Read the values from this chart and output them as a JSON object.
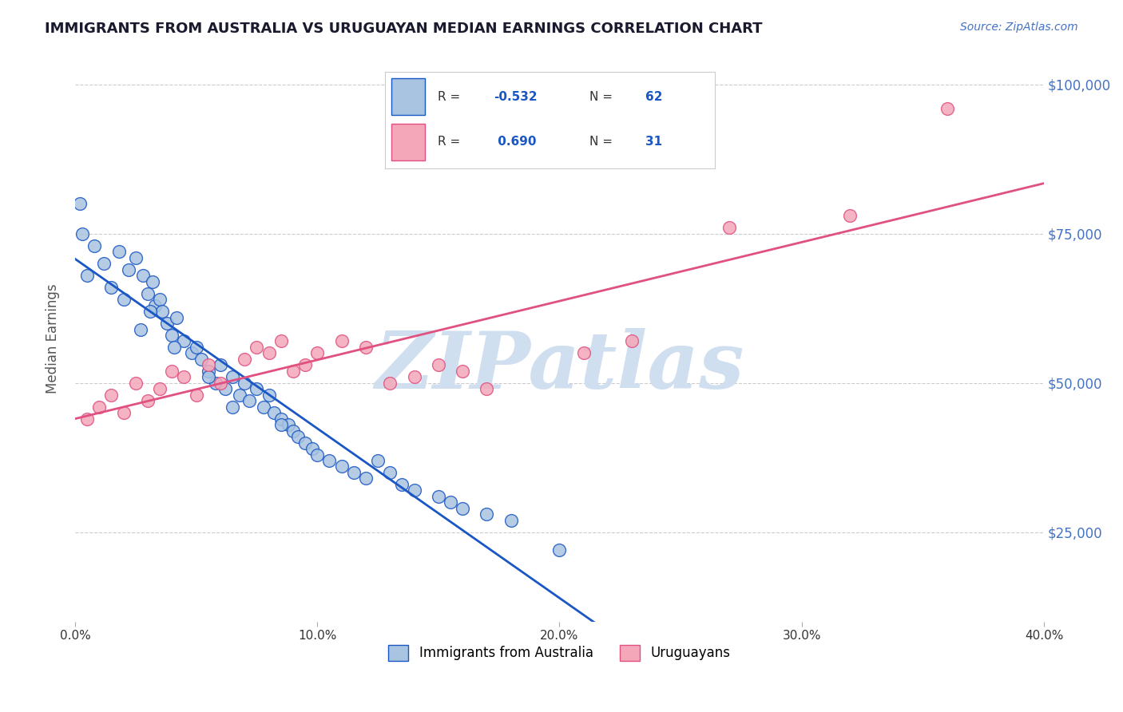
{
  "title": "IMMIGRANTS FROM AUSTRALIA VS URUGUAYAN MEDIAN EARNINGS CORRELATION CHART",
  "source_text": "Source: ZipAtlas.com",
  "ylabel": "Median Earnings",
  "xlim": [
    0.0,
    0.4
  ],
  "ylim": [
    10000,
    105000
  ],
  "xticks": [
    0.0,
    0.1,
    0.2,
    0.3,
    0.4
  ],
  "xtick_labels": [
    "0.0%",
    "10.0%",
    "20.0%",
    "30.0%",
    "40.0%"
  ],
  "yticks": [
    25000,
    50000,
    75000,
    100000
  ],
  "ytick_labels": [
    "$25,000",
    "$50,000",
    "$75,000",
    "$100,000"
  ],
  "blue_color": "#a8c4e0",
  "pink_color": "#f4a7b9",
  "blue_line_color": "#1a56c4",
  "pink_line_color": "#e05080",
  "R_blue": -0.532,
  "N_blue": 62,
  "R_pink": 0.69,
  "N_pink": 31,
  "watermark": "ZIPatlas",
  "watermark_color": "#d0dff0",
  "legend_label_blue": "Immigrants from Australia",
  "legend_label_pink": "Uruguayans",
  "background_color": "#ffffff",
  "grid_color": "#cccccc",
  "title_color": "#1a1a2e",
  "source_color": "#4472c4",
  "axis_label_color": "#555555",
  "ytick_color": "#4472c4",
  "blue_scatter_x": [
    0.005,
    0.008,
    0.012,
    0.018,
    0.022,
    0.025,
    0.028,
    0.03,
    0.032,
    0.033,
    0.035,
    0.036,
    0.038,
    0.04,
    0.042,
    0.045,
    0.048,
    0.05,
    0.052,
    0.055,
    0.058,
    0.06,
    0.062,
    0.065,
    0.068,
    0.07,
    0.072,
    0.075,
    0.078,
    0.08,
    0.082,
    0.085,
    0.088,
    0.09,
    0.092,
    0.095,
    0.098,
    0.1,
    0.105,
    0.11,
    0.115,
    0.12,
    0.125,
    0.13,
    0.135,
    0.14,
    0.15,
    0.155,
    0.16,
    0.17,
    0.002,
    0.003,
    0.015,
    0.02,
    0.027,
    0.031,
    0.041,
    0.055,
    0.065,
    0.085,
    0.18,
    0.2
  ],
  "blue_scatter_y": [
    68000,
    73000,
    70000,
    72000,
    69000,
    71000,
    68000,
    65000,
    67000,
    63000,
    64000,
    62000,
    60000,
    58000,
    61000,
    57000,
    55000,
    56000,
    54000,
    52000,
    50000,
    53000,
    49000,
    51000,
    48000,
    50000,
    47000,
    49000,
    46000,
    48000,
    45000,
    44000,
    43000,
    42000,
    41000,
    40000,
    39000,
    38000,
    37000,
    36000,
    35000,
    34000,
    37000,
    35000,
    33000,
    32000,
    31000,
    30000,
    29000,
    28000,
    80000,
    75000,
    66000,
    64000,
    59000,
    62000,
    56000,
    51000,
    46000,
    43000,
    27000,
    22000
  ],
  "pink_scatter_x": [
    0.005,
    0.01,
    0.015,
    0.02,
    0.025,
    0.03,
    0.035,
    0.04,
    0.045,
    0.05,
    0.055,
    0.06,
    0.07,
    0.075,
    0.08,
    0.085,
    0.09,
    0.095,
    0.1,
    0.11,
    0.12,
    0.13,
    0.14,
    0.15,
    0.16,
    0.17,
    0.21,
    0.23,
    0.27,
    0.32,
    0.36
  ],
  "pink_scatter_y": [
    44000,
    46000,
    48000,
    45000,
    50000,
    47000,
    49000,
    52000,
    51000,
    48000,
    53000,
    50000,
    54000,
    56000,
    55000,
    57000,
    52000,
    53000,
    55000,
    57000,
    56000,
    50000,
    51000,
    53000,
    52000,
    49000,
    55000,
    57000,
    76000,
    78000,
    96000
  ]
}
